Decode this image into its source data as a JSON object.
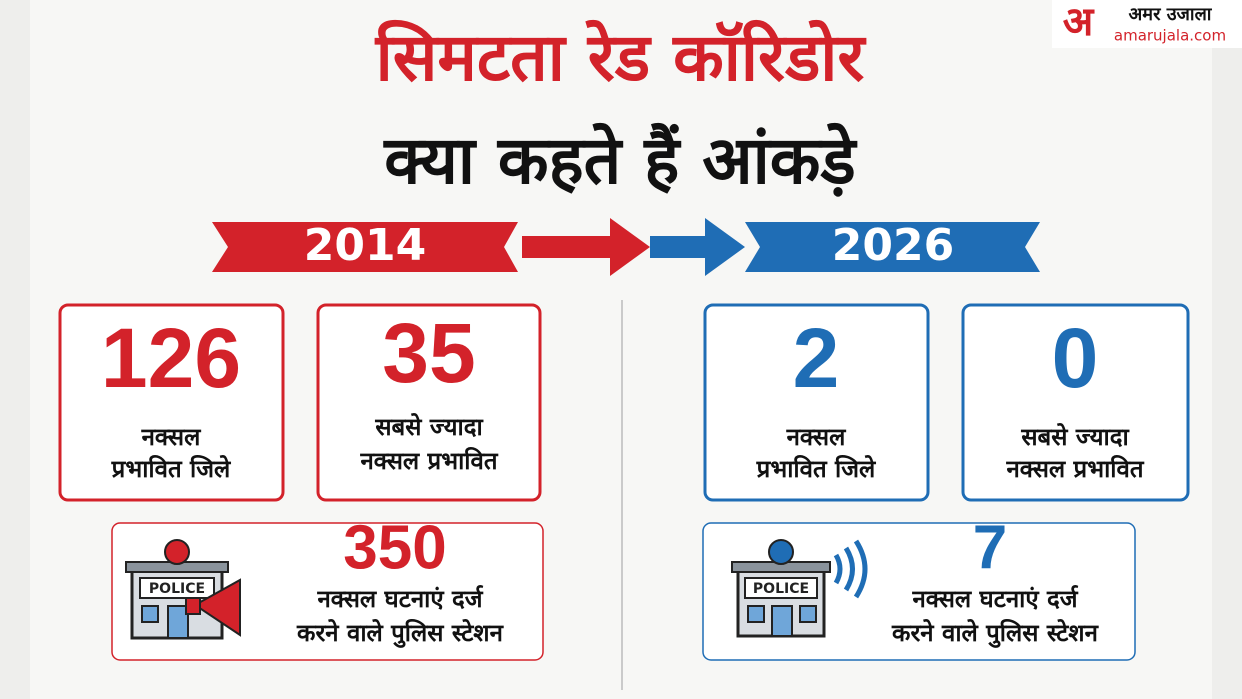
{
  "logo": {
    "mark": "अ",
    "name": "अमर उजाला",
    "site": "amarujala.com"
  },
  "title": {
    "line1": "सिमटता रेड कॉरिडोर",
    "line2": "क्या कहते हैं आंकड़े"
  },
  "periods": [
    {
      "year": 2014,
      "stats": [
        {
          "value": 126,
          "label": [
            "नक्सल",
            "प्रभावित जिले"
          ]
        },
        {
          "value": 35,
          "label": [
            "सबसे ज्यादा",
            "नक्सल प्रभावित"
          ]
        }
      ],
      "station": {
        "value": 350,
        "sign": "POLICE",
        "label": [
          "नक्सल घटनाएं दर्ज",
          "करने वाले पुलिस स्टेशन"
        ]
      }
    },
    {
      "year": 2026,
      "stats": [
        {
          "value": 2,
          "label": [
            "नक्सल",
            "प्रभावित जिले"
          ]
        },
        {
          "value": 0,
          "label": [
            "सबसे ज्यादा",
            "नक्सल प्रभावित"
          ]
        }
      ],
      "station": {
        "value": 7,
        "sign": "POLICE",
        "label": [
          "नक्सल घटनाएं दर्ज",
          "करने वाले पुलिस स्टेशन"
        ]
      }
    }
  ]
}
